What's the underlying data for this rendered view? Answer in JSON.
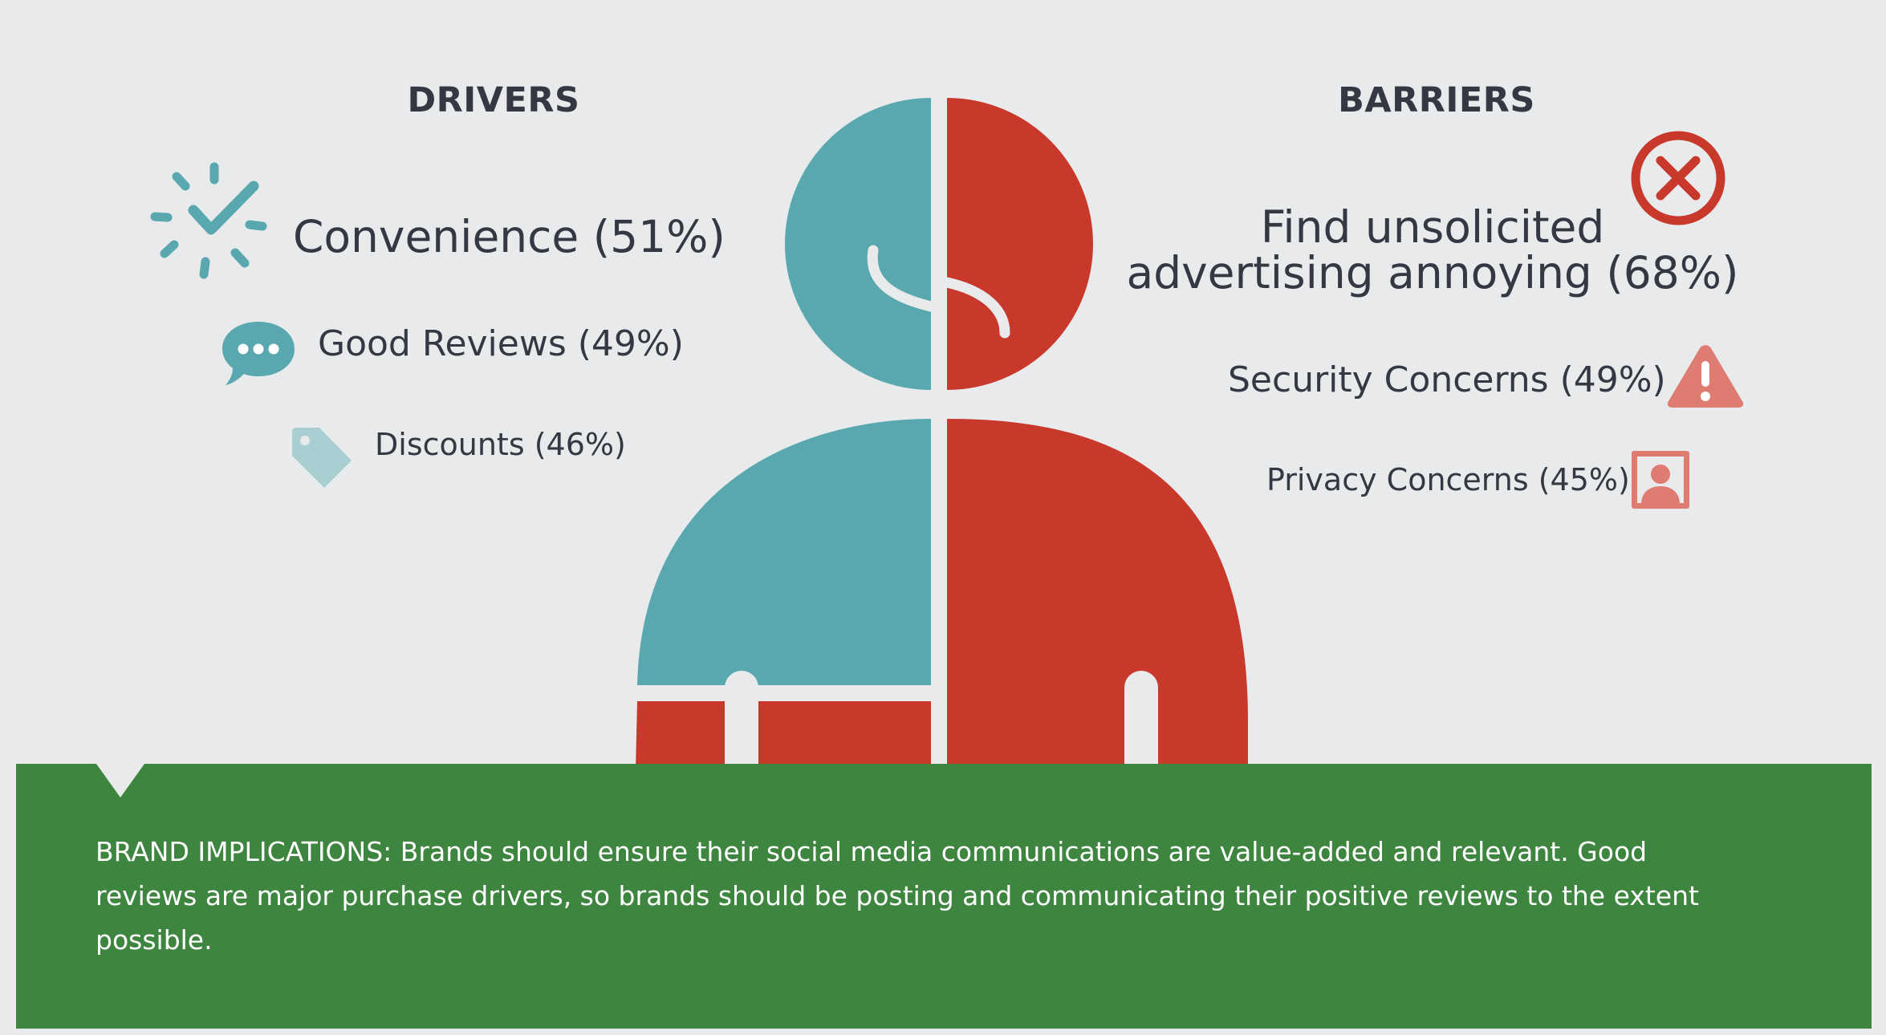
{
  "drivers": {
    "heading": "DRIVERS",
    "items": [
      {
        "label": "Convenience (51%)",
        "icon": "checkmark-burst-icon"
      },
      {
        "label": "Good Reviews (49%)",
        "icon": "speech-bubble-icon"
      },
      {
        "label": "Discounts (46%)",
        "icon": "price-tag-icon"
      }
    ]
  },
  "barriers": {
    "heading": "BARRIERS",
    "items": [
      {
        "line1": "Find unsolicited",
        "line2": "advertising annoying (68%)",
        "icon": "x-circle-icon"
      },
      {
        "label": "Security Concerns (49%)",
        "icon": "warning-triangle-icon"
      },
      {
        "label": "Privacy Concerns (45%)",
        "icon": "person-portrait-icon"
      }
    ]
  },
  "figure": {
    "icon": "half-happy-half-sad-person-icon"
  },
  "colors": {
    "teal": "#5aa8af",
    "red": "#c8382b",
    "green": "#3e8540",
    "background": "#e9eaeb",
    "text": "#343842"
  },
  "banner": {
    "text": "BRAND IMPLICATIONS:  Brands should ensure their social media communications are value-added and relevant. Good reviews are major purchase drivers, so brands should be posting and communicating their positive reviews to the extent possible."
  }
}
